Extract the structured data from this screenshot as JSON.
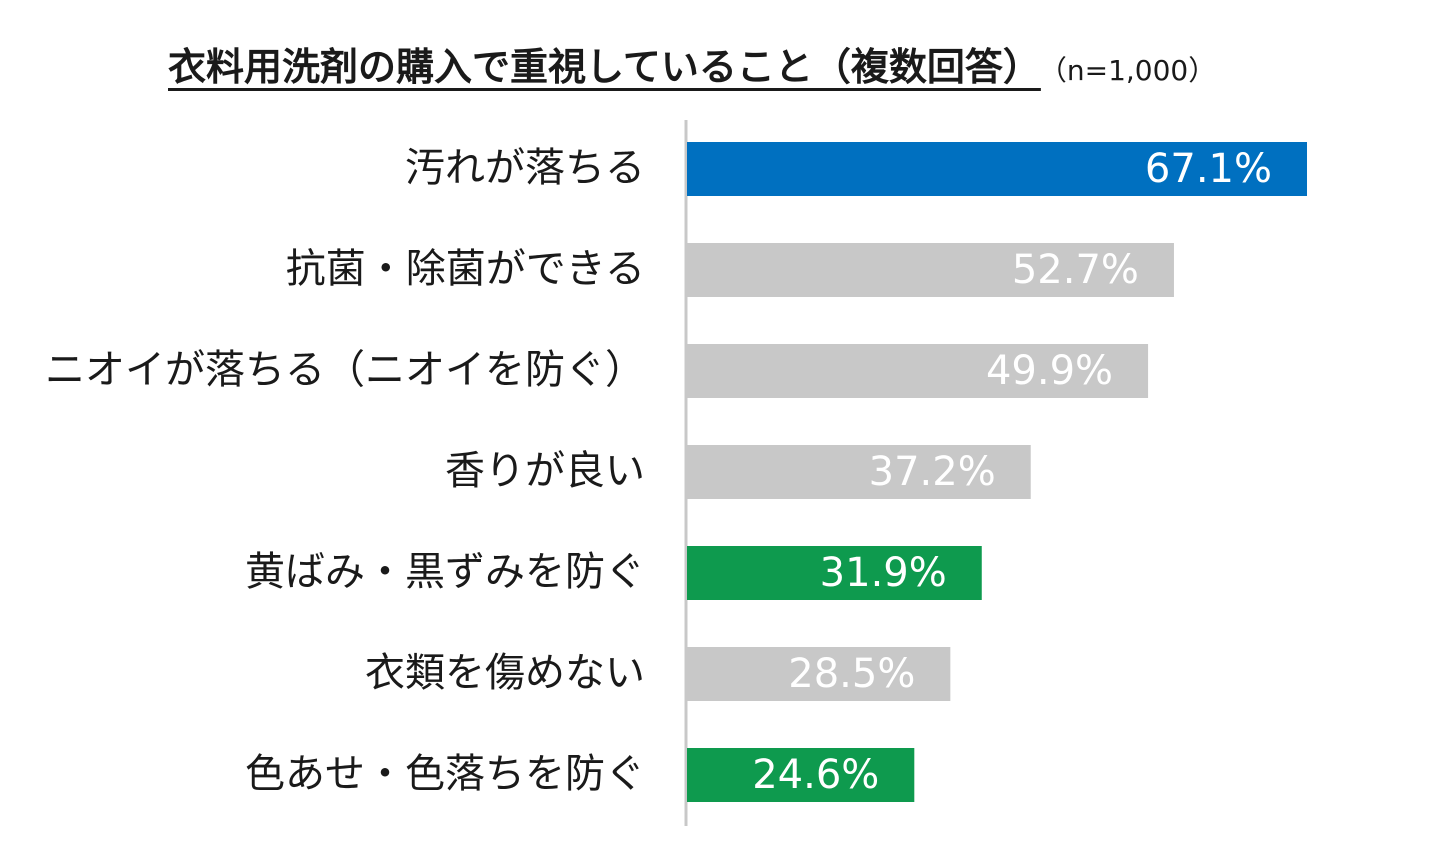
{
  "chart_data": {
    "type": "bar",
    "orientation": "horizontal",
    "title": "衣料用洗剤の購入で重視していること（複数回答）",
    "subtitle": "（n=1,000）",
    "categories": [
      "汚れが落ちる",
      "抗菌・除菌ができる",
      "ニオイが落ちる（ニオイを防ぐ）",
      "香りが良い",
      "黄ばみ・黒ずみを防ぐ",
      "衣類を傷めない",
      "色あせ・色落ちを防ぐ"
    ],
    "values": [
      67.1,
      52.7,
      49.9,
      37.2,
      31.9,
      28.5,
      24.6
    ],
    "value_labels": [
      "67.1%",
      "52.7%",
      "49.9%",
      "37.2%",
      "31.9%",
      "28.5%",
      "24.6%"
    ],
    "bar_colors": [
      "#0070C0",
      "#C8C8C8",
      "#C8C8C8",
      "#C8C8C8",
      "#0E9A4E",
      "#C8C8C8",
      "#0E9A4E"
    ],
    "xlim": [
      0,
      100
    ],
    "grid": false,
    "legend": "none",
    "xlabel": "",
    "ylabel": ""
  },
  "colors": {
    "axis": "#C8C8C8",
    "label_text": "#1a1a1a",
    "value_text": "#ffffff"
  }
}
